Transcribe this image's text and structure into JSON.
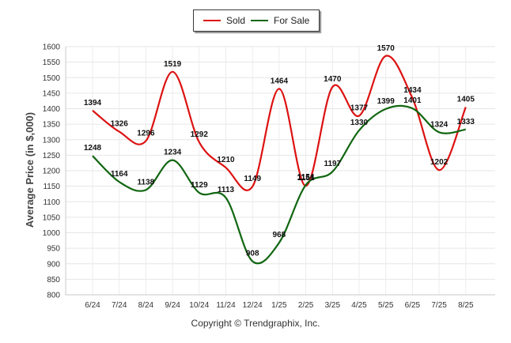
{
  "chart_data": {
    "type": "line",
    "categories": [
      "6/24",
      "7/24",
      "8/24",
      "9/24",
      "10/24",
      "11/24",
      "12/24",
      "1/25",
      "2/25",
      "3/25",
      "4/25",
      "5/25",
      "6/25",
      "7/25",
      "8/25"
    ],
    "series": [
      {
        "name": "Sold",
        "color": "#dd1111",
        "values": [
          1394,
          1326,
          1296,
          1519,
          1292,
          1210,
          1149,
          1464,
          1151,
          1470,
          1377,
          1570,
          1434,
          1202,
          1405
        ]
      },
      {
        "name": "For Sale",
        "color": "#116611",
        "values": [
          1248,
          1164,
          1138,
          1234,
          1129,
          1113,
          908,
          968,
          1154,
          1197,
          1330,
          1399,
          1401,
          1324,
          1333
        ]
      }
    ],
    "ylabel": "Average Price (in $,000)",
    "xlabel": "",
    "ylim": [
      800,
      1600
    ],
    "yticks": [
      800,
      850,
      900,
      950,
      1000,
      1050,
      1100,
      1150,
      1200,
      1250,
      1300,
      1350,
      1400,
      1450,
      1500,
      1550,
      1600
    ],
    "grid": true,
    "legend": "top-center"
  },
  "footer": {
    "copyright": "Copyright © Trendgraphix, Inc."
  }
}
